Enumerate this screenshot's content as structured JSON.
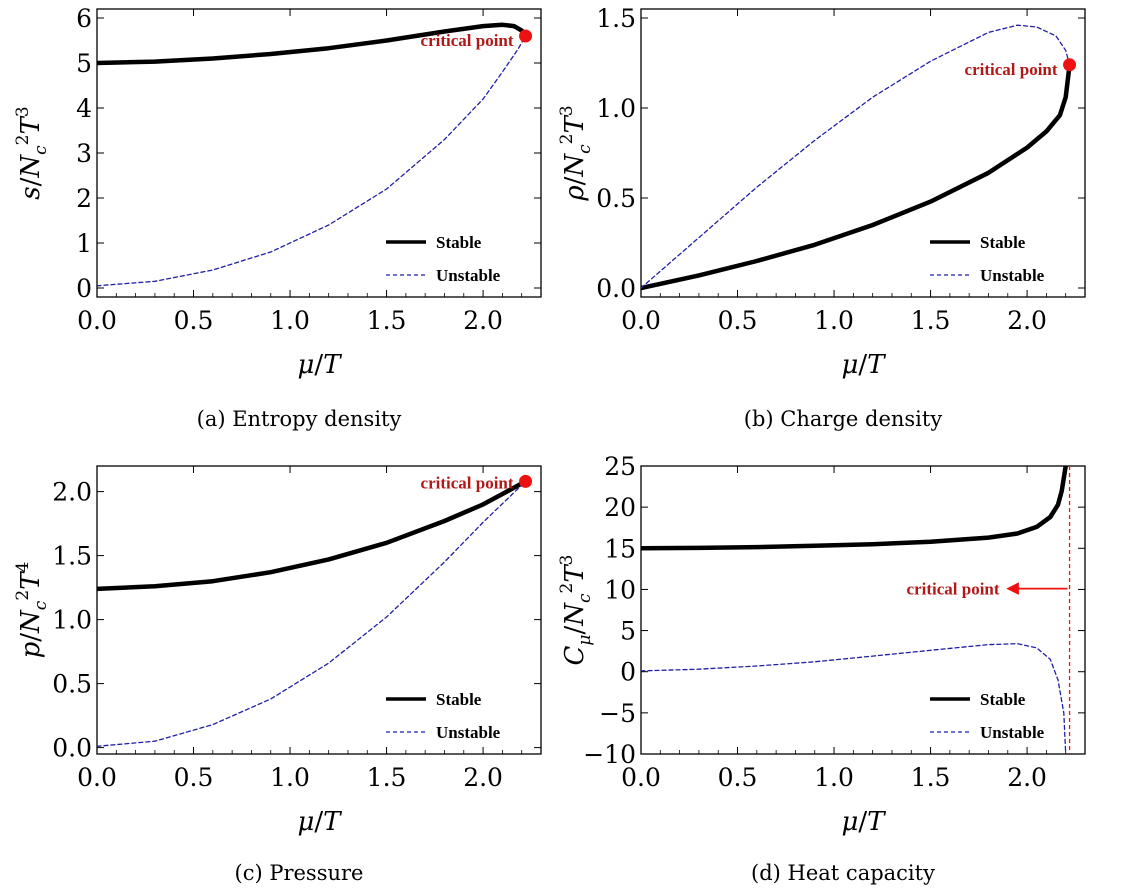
{
  "colors": {
    "stable": "#000000",
    "unstable": "#1f1fa8",
    "critical": "#ee1111",
    "annotation": "#b21818"
  },
  "chart_data": [
    {
      "type": "line",
      "caption": "(a) Entropy density",
      "xlabel": "μ/T",
      "ylabel": "s/N_c^2 T^3",
      "xlim": [
        0,
        2.3
      ],
      "ylim": [
        -0.2,
        6.2
      ],
      "xticks": [
        "0.0",
        "0.5",
        "1.0",
        "1.5",
        "2.0"
      ],
      "yticks": [
        "0",
        "1",
        "2",
        "3",
        "4",
        "5",
        "6"
      ],
      "legend": {
        "position": "bottom-right",
        "entries": [
          "Stable",
          "Unstable"
        ]
      },
      "annotation": "critical point",
      "critical_point": {
        "x": 2.22,
        "y": 5.6
      },
      "series": [
        {
          "name": "Stable",
          "style": "solid",
          "x": [
            0.0,
            0.3,
            0.6,
            0.9,
            1.2,
            1.5,
            1.8,
            2.0,
            2.1,
            2.16,
            2.2,
            2.22
          ],
          "y": [
            5.0,
            5.03,
            5.1,
            5.2,
            5.33,
            5.5,
            5.7,
            5.82,
            5.85,
            5.82,
            5.72,
            5.6
          ]
        },
        {
          "name": "Unstable",
          "style": "dashed",
          "x": [
            0.0,
            0.3,
            0.6,
            0.9,
            1.2,
            1.5,
            1.8,
            2.0,
            2.1,
            2.18,
            2.22
          ],
          "y": [
            0.05,
            0.15,
            0.4,
            0.8,
            1.4,
            2.2,
            3.3,
            4.2,
            4.8,
            5.3,
            5.6
          ]
        }
      ]
    },
    {
      "type": "line",
      "caption": "(b) Charge density",
      "xlabel": "μ/T",
      "ylabel": "ρ/N_c^2 T^3",
      "xlim": [
        0,
        2.3
      ],
      "ylim": [
        -0.05,
        1.55
      ],
      "xticks": [
        "0.0",
        "0.5",
        "1.0",
        "1.5",
        "2.0"
      ],
      "yticks": [
        "0.0",
        "0.5",
        "1.0",
        "1.5"
      ],
      "legend": {
        "position": "bottom-right",
        "entries": [
          "Stable",
          "Unstable"
        ]
      },
      "annotation": "critical point",
      "critical_point": {
        "x": 2.22,
        "y": 1.24
      },
      "series": [
        {
          "name": "Stable",
          "style": "solid",
          "x": [
            0.0,
            0.3,
            0.6,
            0.9,
            1.2,
            1.5,
            1.8,
            2.0,
            2.1,
            2.17,
            2.2,
            2.22
          ],
          "y": [
            0.0,
            0.07,
            0.15,
            0.24,
            0.35,
            0.48,
            0.64,
            0.78,
            0.87,
            0.96,
            1.06,
            1.24
          ]
        },
        {
          "name": "Unstable",
          "style": "dashed",
          "x": [
            0.0,
            0.3,
            0.6,
            0.9,
            1.2,
            1.5,
            1.8,
            1.95,
            2.05,
            2.15,
            2.2,
            2.22
          ],
          "y": [
            0.0,
            0.28,
            0.56,
            0.82,
            1.06,
            1.26,
            1.42,
            1.46,
            1.45,
            1.4,
            1.32,
            1.24
          ]
        }
      ]
    },
    {
      "type": "line",
      "caption": "(c) Pressure",
      "xlabel": "μ/T",
      "ylabel": "p/N_c^2 T^4",
      "xlim": [
        0,
        2.3
      ],
      "ylim": [
        -0.05,
        2.2
      ],
      "xticks": [
        "0.0",
        "0.5",
        "1.0",
        "1.5",
        "2.0"
      ],
      "yticks": [
        "0.0",
        "0.5",
        "1.0",
        "1.5",
        "2.0"
      ],
      "legend": {
        "position": "bottom-right",
        "entries": [
          "Stable",
          "Unstable"
        ]
      },
      "annotation": "critical point",
      "critical_point": {
        "x": 2.22,
        "y": 2.08
      },
      "series": [
        {
          "name": "Stable",
          "style": "solid",
          "x": [
            0.0,
            0.3,
            0.6,
            0.9,
            1.2,
            1.5,
            1.8,
            2.0,
            2.22
          ],
          "y": [
            1.24,
            1.26,
            1.3,
            1.37,
            1.47,
            1.6,
            1.77,
            1.9,
            2.08
          ]
        },
        {
          "name": "Unstable",
          "style": "dashed",
          "x": [
            0.0,
            0.3,
            0.6,
            0.9,
            1.2,
            1.5,
            1.8,
            2.0,
            2.22
          ],
          "y": [
            0.01,
            0.05,
            0.18,
            0.38,
            0.66,
            1.02,
            1.45,
            1.76,
            2.08
          ]
        }
      ]
    },
    {
      "type": "line",
      "caption": "(d) Heat capacity",
      "xlabel": "μ/T",
      "ylabel": "C_μ/N_c^2 T^3",
      "xlim": [
        0,
        2.3
      ],
      "ylim": [
        -10,
        25
      ],
      "xticks": [
        "0.0",
        "0.5",
        "1.0",
        "1.5",
        "2.0"
      ],
      "yticks": [
        "−10",
        "−5",
        "0",
        "5",
        "10",
        "15",
        "20",
        "25"
      ],
      "legend": {
        "position": "bottom-right",
        "entries": [
          "Stable",
          "Unstable"
        ]
      },
      "annotation": "critical point",
      "critical_line_x": 2.22,
      "series": [
        {
          "name": "Stable",
          "style": "solid",
          "x": [
            0.0,
            0.3,
            0.6,
            0.9,
            1.2,
            1.5,
            1.8,
            1.95,
            2.05,
            2.12,
            2.16,
            2.18,
            2.2
          ],
          "y": [
            15.0,
            15.05,
            15.15,
            15.3,
            15.5,
            15.8,
            16.3,
            16.8,
            17.6,
            18.8,
            20.3,
            22.0,
            25.0
          ]
        },
        {
          "name": "Unstable",
          "style": "dashed",
          "x": [
            0.0,
            0.3,
            0.6,
            0.9,
            1.2,
            1.5,
            1.8,
            1.95,
            2.05,
            2.12,
            2.16,
            2.19,
            2.2
          ],
          "y": [
            0.1,
            0.3,
            0.7,
            1.2,
            1.9,
            2.6,
            3.3,
            3.4,
            2.9,
            1.5,
            -1.0,
            -5.0,
            -10.0
          ]
        }
      ]
    }
  ]
}
